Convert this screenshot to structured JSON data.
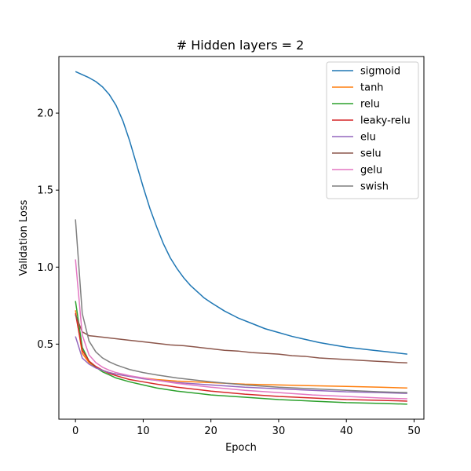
{
  "chart_data": {
    "type": "line",
    "title": "# Hidden layers = 2",
    "xlabel": "Epoch",
    "ylabel": "Validation Loss",
    "xlim": [
      -2.45,
      51.45
    ],
    "ylim": [
      0.0125,
      2.3675
    ],
    "xticks": [
      0,
      10,
      20,
      30,
      40,
      50
    ],
    "yticks": [
      0.5,
      1.0,
      1.5,
      2.0
    ],
    "grid": false,
    "legend_position": "upper-right",
    "series": [
      {
        "name": "sigmoid",
        "color": "#1f77b4",
        "x": [
          0,
          1,
          2,
          3,
          4,
          5,
          6,
          7,
          8,
          9,
          10,
          11,
          12,
          13,
          14,
          15,
          16,
          17,
          18,
          19,
          20,
          22,
          24,
          26,
          28,
          30,
          32,
          34,
          36,
          38,
          40,
          42,
          44,
          46,
          48,
          49
        ],
        "y": [
          2.27,
          2.25,
          2.23,
          2.205,
          2.17,
          2.12,
          2.05,
          1.95,
          1.82,
          1.67,
          1.52,
          1.38,
          1.26,
          1.15,
          1.06,
          0.99,
          0.93,
          0.88,
          0.84,
          0.8,
          0.77,
          0.715,
          0.67,
          0.635,
          0.6,
          0.575,
          0.55,
          0.53,
          0.51,
          0.495,
          0.48,
          0.47,
          0.46,
          0.45,
          0.44,
          0.435
        ]
      },
      {
        "name": "tanh",
        "color": "#ff7f0e",
        "x": [
          0,
          1,
          2,
          3,
          4,
          5,
          6,
          8,
          10,
          12,
          15,
          20,
          25,
          30,
          35,
          40,
          45,
          49
        ],
        "y": [
          0.72,
          0.44,
          0.38,
          0.35,
          0.33,
          0.315,
          0.305,
          0.29,
          0.28,
          0.27,
          0.26,
          0.25,
          0.24,
          0.235,
          0.23,
          0.225,
          0.22,
          0.215
        ]
      },
      {
        "name": "relu",
        "color": "#2ca02c",
        "x": [
          0,
          1,
          2,
          3,
          4,
          5,
          6,
          8,
          10,
          12,
          15,
          20,
          25,
          30,
          35,
          40,
          45,
          49
        ],
        "y": [
          0.78,
          0.48,
          0.39,
          0.35,
          0.32,
          0.3,
          0.28,
          0.255,
          0.235,
          0.215,
          0.195,
          0.17,
          0.155,
          0.14,
          0.13,
          0.12,
          0.115,
          0.11
        ]
      },
      {
        "name": "leaky-relu",
        "color": "#d62728",
        "x": [
          0,
          1,
          2,
          3,
          4,
          5,
          6,
          8,
          10,
          12,
          15,
          20,
          25,
          30,
          35,
          40,
          45,
          49
        ],
        "y": [
          0.7,
          0.46,
          0.39,
          0.355,
          0.33,
          0.31,
          0.295,
          0.27,
          0.255,
          0.24,
          0.22,
          0.195,
          0.175,
          0.16,
          0.15,
          0.14,
          0.135,
          0.13
        ]
      },
      {
        "name": "elu",
        "color": "#9467bd",
        "x": [
          0,
          1,
          2,
          3,
          4,
          5,
          6,
          8,
          10,
          12,
          15,
          20,
          25,
          30,
          35,
          40,
          45,
          49
        ],
        "y": [
          0.55,
          0.41,
          0.37,
          0.345,
          0.33,
          0.315,
          0.305,
          0.29,
          0.275,
          0.265,
          0.25,
          0.235,
          0.22,
          0.21,
          0.2,
          0.19,
          0.185,
          0.18
        ]
      },
      {
        "name": "selu",
        "color": "#8c564b",
        "x": [
          0,
          1,
          2,
          3,
          4,
          5,
          6,
          8,
          10,
          12,
          14,
          16,
          18,
          20,
          22,
          24,
          26,
          28,
          30,
          32,
          34,
          36,
          38,
          40,
          42,
          44,
          46,
          48,
          49
        ],
        "y": [
          0.69,
          0.58,
          0.555,
          0.55,
          0.545,
          0.54,
          0.535,
          0.525,
          0.515,
          0.505,
          0.495,
          0.49,
          0.48,
          0.47,
          0.46,
          0.455,
          0.445,
          0.44,
          0.435,
          0.425,
          0.42,
          0.41,
          0.405,
          0.4,
          0.395,
          0.39,
          0.385,
          0.38,
          0.378
        ]
      },
      {
        "name": "gelu",
        "color": "#e377c2",
        "x": [
          0,
          1,
          2,
          3,
          4,
          5,
          6,
          8,
          10,
          12,
          15,
          20,
          25,
          30,
          35,
          40,
          45,
          49
        ],
        "y": [
          1.05,
          0.56,
          0.43,
          0.38,
          0.35,
          0.33,
          0.315,
          0.295,
          0.28,
          0.265,
          0.245,
          0.22,
          0.2,
          0.185,
          0.17,
          0.16,
          0.15,
          0.145
        ]
      },
      {
        "name": "swish",
        "color": "#7f7f7f",
        "x": [
          0,
          1,
          2,
          3,
          4,
          5,
          6,
          7,
          8,
          10,
          12,
          15,
          20,
          25,
          30,
          35,
          40,
          45,
          49
        ],
        "y": [
          1.31,
          0.7,
          0.52,
          0.45,
          0.41,
          0.385,
          0.365,
          0.35,
          0.335,
          0.315,
          0.3,
          0.28,
          0.255,
          0.235,
          0.22,
          0.21,
          0.2,
          0.19,
          0.185
        ]
      }
    ]
  }
}
